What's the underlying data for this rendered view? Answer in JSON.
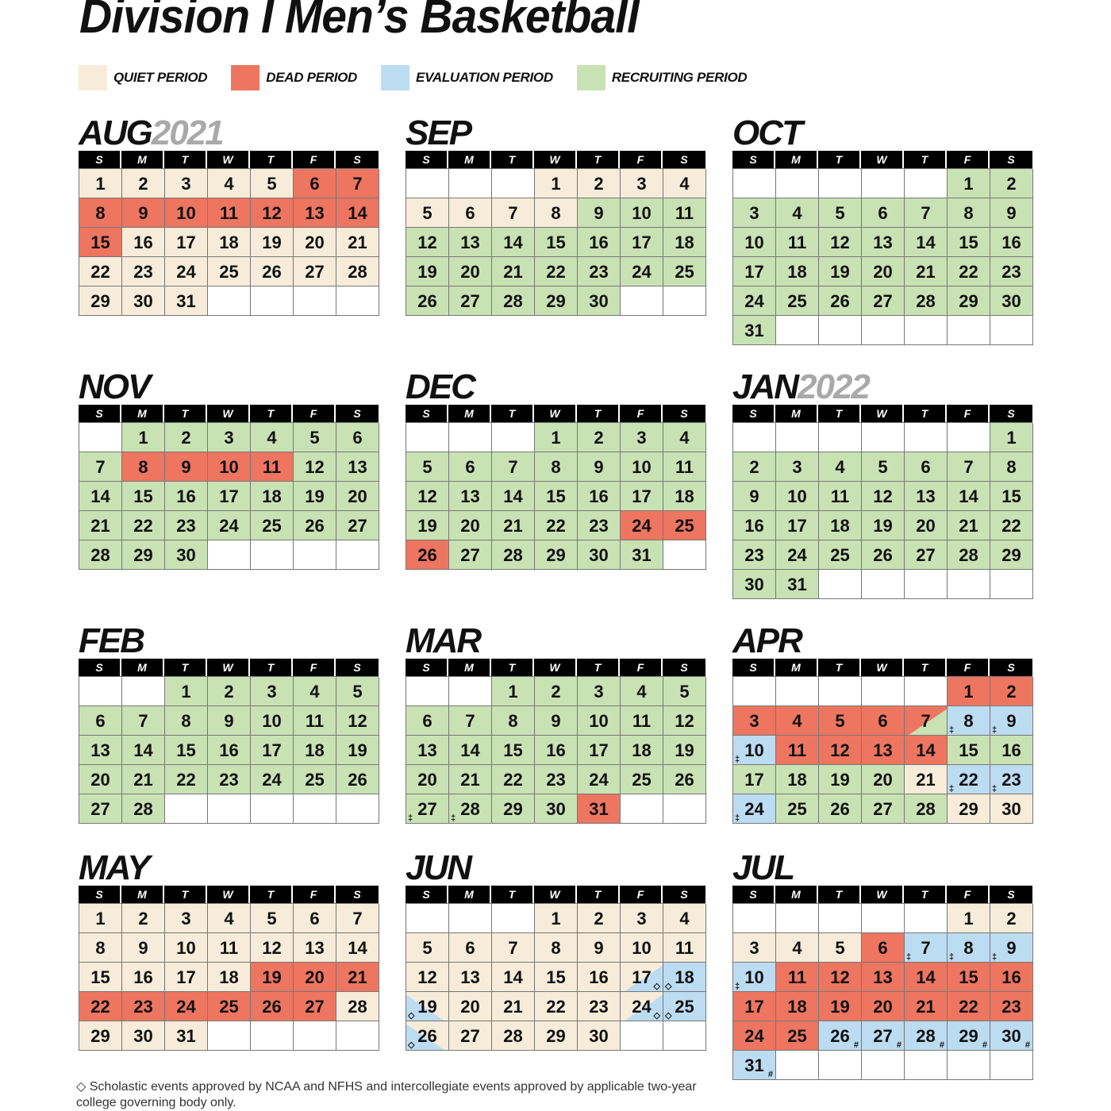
{
  "title": "Division I Men’s Basketball",
  "legend": [
    {
      "key": "q",
      "label": "QUIET PERIOD",
      "color": "#f6ecd9"
    },
    {
      "key": "d",
      "label": "DEAD PERIOD",
      "color": "#ee7560"
    },
    {
      "key": "e",
      "label": "EVALUATION PERIOD",
      "color": "#bcdcf2"
    },
    {
      "key": "r",
      "label": "RECRUITING PERIOD",
      "color": "#c9e2b4"
    }
  ],
  "weekdays": [
    "S",
    "M",
    "T",
    "W",
    "T",
    "F",
    "S"
  ],
  "months": [
    {
      "name": "AUG",
      "year": "2021",
      "periods": "qqqqqddddddddddqqqqqqqqqqqqqqqq"
    },
    {
      "name": "SEP",
      "year": "",
      "periods": "qqqqqqqqrrrrrrrrrrrrrrrrrrrrrr"
    },
    {
      "name": "OCT",
      "year": "",
      "periods": "rrrrrrrrrrrrrrrrrrrrrrrrrrrrrrr"
    },
    {
      "name": "NOV",
      "year": "",
      "periods": "rrrrrrrddddrrrrrrrrrrrrrrrrrrr"
    },
    {
      "name": "DEC",
      "year": "",
      "periods": "rrrrrrrrrrrrrrrrrrrrrrrdddrrrrr"
    },
    {
      "name": "JAN",
      "year": "2022",
      "periods": "rrrrrrrrrrrrrrrrrrrrrrrrrrrrrrr"
    },
    {
      "name": "FEB",
      "year": "",
      "periods": "rrrrrrrrrrrrrrrrrrrrrrrrrrrr"
    },
    {
      "name": "MAR",
      "year": "",
      "periods": "rrrrrrrrrrrrrrrrrrrrrrrrrrrrrrd",
      "marks": {
        "27": "‡",
        "28": "‡"
      }
    },
    {
      "name": "APR",
      "year": "",
      "periods": "ddddddxeeeddddrrrrrrqeeerrrrqq",
      "splits": {
        "7": "d/r"
      },
      "marks": {
        "8": "‡",
        "9": "‡",
        "10": "‡",
        "22": "‡",
        "23": "‡",
        "24": "‡"
      }
    },
    {
      "name": "MAY",
      "year": "",
      "periods": "qqqqqqqqqqqqqqqqqqdddddddddqqqq"
    },
    {
      "name": "JUN",
      "year": "",
      "periods": "qqqqqqqqqqqqqqqqxexqqqqxexqqqq",
      "splits": {
        "17": "q/e",
        "24": "q/e",
        "19": "e/q",
        "26": "e/q"
      },
      "marks": {
        "17": "◇",
        "18": "◇",
        "19": "◇",
        "24": "◇",
        "25": "◇",
        "26": "◇"
      }
    },
    {
      "name": "JUL",
      "year": "",
      "periods": "qqqqqdeeeedddddddddddddddeeeeee",
      "marks": {
        "7": "‡",
        "8": "‡",
        "9": "‡",
        "10": "‡",
        "26": "#",
        "27": "#",
        "28": "#",
        "29": "#",
        "30": "#",
        "31": "#"
      }
    }
  ],
  "footnote": "◇  Scholastic events approved by NCAA and NFHS and intercollegiate events approved by applicable two-year college governing body only."
}
